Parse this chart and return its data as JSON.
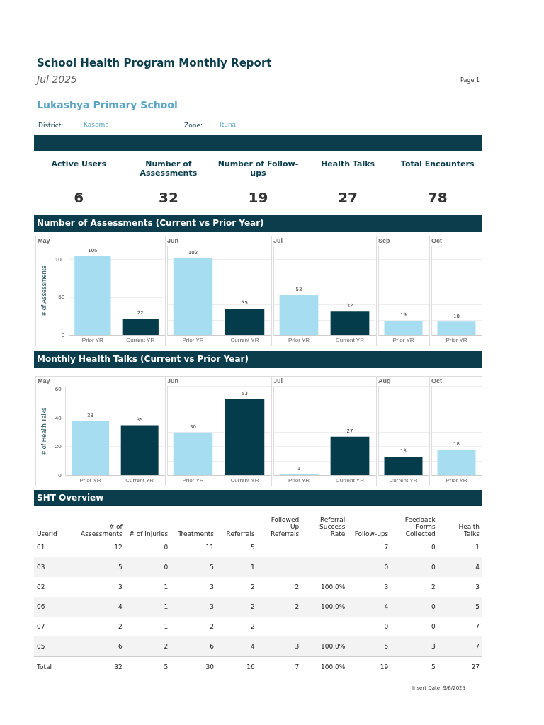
{
  "chart_data": [
    {
      "type": "other",
      "title": "School Health Program Monthly Report",
      "subtitle": "Jul 2025",
      "annotations": [
        "Page 1",
        "Lukashya Primary School",
        "District:",
        "Kasama",
        "Zone:",
        "Ituna"
      ],
      "categories": [
        "Active Users",
        "Number of Assessments",
        "Number of Follow-ups",
        "Health Talks",
        "Total Encounters"
      ],
      "values": [
        6,
        32,
        19,
        27,
        78
      ],
      "data_labels": true
    },
    {
      "type": "other",
      "title": "Number of Assessments (Current vs Prior Year)"
    },
    {
      "type": "bar",
      "title": "May",
      "ylabel": "# of Assessments",
      "categories": [
        "Prior YR",
        "Current YR"
      ],
      "values": [
        105,
        22
      ],
      "colors": [
        "#a6ddf0",
        "#053c4c"
      ],
      "ylim": [
        0,
        118
      ],
      "yticks": [
        0,
        50,
        100
      ],
      "grid": "y",
      "data_labels": true
    },
    {
      "type": "bar",
      "title": "Jun",
      "categories": [
        "Prior YR",
        "Current YR"
      ],
      "values": [
        102,
        35
      ],
      "colors": [
        "#a6ddf0",
        "#053c4c"
      ],
      "ylim": [
        0,
        118
      ],
      "grid": "y",
      "data_labels": true,
      "tick_labels": "x"
    },
    {
      "type": "bar",
      "title": "Jul",
      "categories": [
        "Prior YR",
        "Current YR"
      ],
      "values": [
        53,
        32
      ],
      "colors": [
        "#a6ddf0",
        "#053c4c"
      ],
      "ylim": [
        0,
        118
      ],
      "grid": "y",
      "data_labels": true,
      "tick_labels": "x"
    },
    {
      "type": "bar",
      "title": "Sep",
      "categories": [
        "Prior YR"
      ],
      "values": [
        19
      ],
      "colors": [
        "#a6ddf0"
      ],
      "ylim": [
        0,
        118
      ],
      "grid": "y",
      "data_labels": true,
      "tick_labels": "x"
    },
    {
      "type": "bar",
      "title": "Oct",
      "categories": [
        "Prior YR"
      ],
      "values": [
        18
      ],
      "colors": [
        "#a6ddf0"
      ],
      "ylim": [
        0,
        118
      ],
      "grid": "y",
      "data_labels": true,
      "tick_labels": "x"
    },
    {
      "type": "other",
      "title": "Monthly Health Talks (Current vs Prior Year)"
    },
    {
      "type": "bar",
      "title": "May",
      "ylabel": "# of Health Talks",
      "categories": [
        "Prior YR",
        "Current YR"
      ],
      "values": [
        38,
        35
      ],
      "colors": [
        "#a6ddf0",
        "#053c4c"
      ],
      "ylim": [
        0,
        62
      ],
      "yticks": [
        0,
        20,
        40,
        60
      ],
      "grid": "y",
      "data_labels": true
    },
    {
      "type": "bar",
      "title": "Jun",
      "categories": [
        "Prior YR",
        "Current YR"
      ],
      "values": [
        30,
        53
      ],
      "colors": [
        "#a6ddf0",
        "#053c4c"
      ],
      "ylim": [
        0,
        62
      ],
      "grid": "y",
      "data_labels": true,
      "tick_labels": "x"
    },
    {
      "type": "bar",
      "title": "Jul",
      "categories": [
        "Prior YR",
        "Current YR"
      ],
      "values": [
        1,
        27
      ],
      "colors": [
        "#a6ddf0",
        "#053c4c"
      ],
      "ylim": [
        0,
        62
      ],
      "grid": "y",
      "data_labels": true,
      "tick_labels": "x"
    },
    {
      "type": "bar",
      "title": "Aug",
      "categories": [
        "Current YR"
      ],
      "values": [
        13
      ],
      "colors": [
        "#053c4c"
      ],
      "ylim": [
        0,
        62
      ],
      "grid": "y",
      "data_labels": true,
      "tick_labels": "x"
    },
    {
      "type": "bar",
      "title": "Oct",
      "categories": [
        "Prior YR"
      ],
      "values": [
        18
      ],
      "colors": [
        "#a6ddf0"
      ],
      "ylim": [
        0,
        62
      ],
      "grid": "y",
      "data_labels": true,
      "tick_labels": "x"
    },
    {
      "type": "other",
      "title": "SHT Overview",
      "ylabel": "Userid",
      "categories": [
        "# of Assessments",
        "# of Injuries",
        "Treatments",
        "Referrals",
        "Followed Up Referrals",
        "Referral Success Rate",
        "Follow-ups",
        "Feedback Forms Collected",
        "Health Talks"
      ],
      "y_categories": [
        "01",
        "03",
        "02",
        "06",
        "07",
        "05",
        "Total"
      ],
      "cell_labels": [
        [
          "12",
          "0",
          "11",
          "5",
          null,
          null,
          "7",
          "0",
          "1"
        ],
        [
          "5",
          "0",
          "5",
          "1",
          null,
          null,
          "0",
          "0",
          "4"
        ],
        [
          "3",
          "1",
          "3",
          "2",
          "2",
          "100.0%",
          "3",
          "2",
          "3"
        ],
        [
          "4",
          "1",
          "3",
          "2",
          "2",
          "100.0%",
          "4",
          "0",
          "5"
        ],
        [
          "2",
          "1",
          "2",
          "2",
          null,
          null,
          "0",
          "0",
          "7"
        ],
        [
          "6",
          "2",
          "6",
          "4",
          "3",
          "100.0%",
          "5",
          "3",
          "7"
        ],
        [
          "32",
          "5",
          "30",
          "16",
          "7",
          "100.0%",
          "19",
          "5",
          "27"
        ]
      ],
      "annotations": [
        "Insert Date:  9/6/2025"
      ]
    }
  ]
}
